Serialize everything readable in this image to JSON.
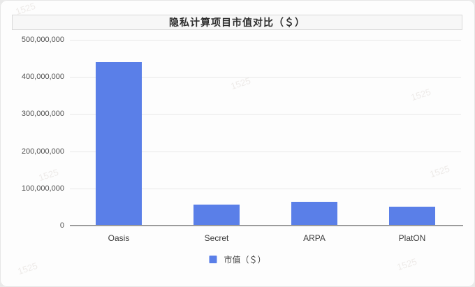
{
  "title": "隐私计算项目市值对比（＄）",
  "watermark_text": "1525",
  "chart_data": {
    "type": "bar",
    "title": "隐私计算项目市值对比（＄）",
    "categories": [
      "Oasis",
      "Secret",
      "ARPA",
      "PlatON"
    ],
    "values": [
      440000000,
      56000000,
      63000000,
      51000000
    ],
    "xlabel": "",
    "ylabel": "",
    "ylim": [
      0,
      500000000
    ],
    "yticks": [
      {
        "label": "500,000,000",
        "value": 500000000
      },
      {
        "label": "400,000,000",
        "value": 400000000
      },
      {
        "label": "300,000,000",
        "value": 300000000
      },
      {
        "label": "200,000,000",
        "value": 200000000
      },
      {
        "label": "100,000,000",
        "value": 100000000
      },
      {
        "label": "0",
        "value": 0
      }
    ],
    "grid": true,
    "legend_position": "bottom",
    "legend_label": "市值（＄）",
    "bar_color": "#5a7fe8",
    "grid_color": "#e8e8e8",
    "axis_color": "#9c9c9c",
    "label_color": "#4f4f4f"
  }
}
